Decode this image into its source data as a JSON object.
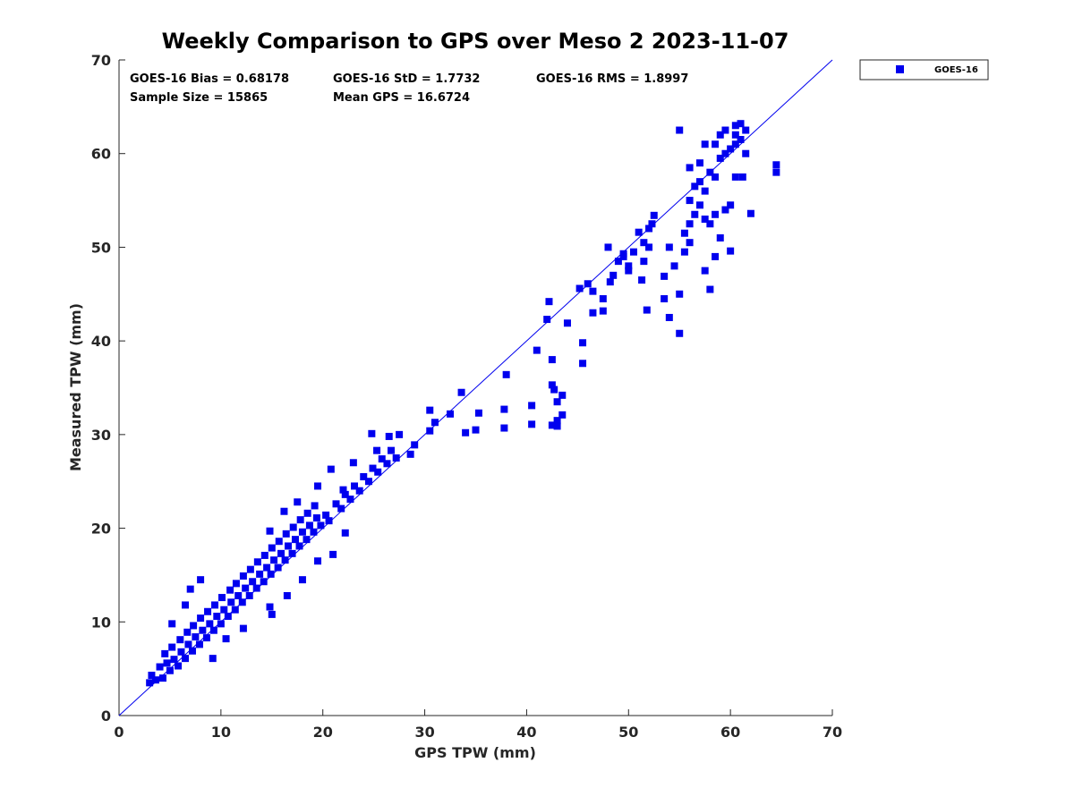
{
  "chart_data": {
    "type": "scatter",
    "title": "Weekly Comparison to GPS over Meso 2 2023-11-07",
    "xlabel": "GPS TPW (mm)",
    "ylabel": "Measured TPW (mm)",
    "xlim": [
      0,
      70
    ],
    "ylim": [
      0,
      70
    ],
    "xticks": [
      0,
      10,
      20,
      30,
      40,
      50,
      60,
      70
    ],
    "yticks": [
      0,
      10,
      20,
      30,
      40,
      50,
      60,
      70
    ],
    "grid": false,
    "legend_position": "outside-top-right",
    "colors": {
      "series": "#0000ee",
      "axis": "#262626",
      "reference_line": "#0000ee"
    },
    "stats": {
      "bias": "GOES-16 Bias = 0.68178",
      "std": "GOES-16 StD = 1.7732",
      "rms": "GOES-16 RMS = 1.8997",
      "sample": "Sample Size = 15865",
      "mean": "Mean GPS = 16.6724"
    },
    "reference_line": {
      "x": [
        0,
        70
      ],
      "y": [
        0,
        70
      ]
    },
    "series": [
      {
        "name": "GOES-16",
        "marker": "square",
        "points": [
          [
            3.0,
            3.5
          ],
          [
            3.2,
            4.3
          ],
          [
            3.6,
            3.8
          ],
          [
            4.0,
            5.2
          ],
          [
            4.3,
            4.0
          ],
          [
            4.7,
            5.6
          ],
          [
            5.0,
            4.8
          ],
          [
            4.5,
            6.6
          ],
          [
            5.4,
            6.0
          ],
          [
            5.8,
            5.3
          ],
          [
            5.2,
            7.3
          ],
          [
            6.1,
            6.8
          ],
          [
            6.5,
            6.1
          ],
          [
            6.0,
            8.1
          ],
          [
            6.8,
            7.6
          ],
          [
            7.2,
            6.9
          ],
          [
            6.7,
            8.9
          ],
          [
            7.5,
            8.4
          ],
          [
            7.9,
            7.6
          ],
          [
            7.3,
            9.6
          ],
          [
            8.2,
            9.1
          ],
          [
            8.6,
            8.3
          ],
          [
            8.0,
            10.4
          ],
          [
            8.9,
            9.8
          ],
          [
            9.3,
            9.1
          ],
          [
            8.7,
            11.1
          ],
          [
            9.6,
            10.6
          ],
          [
            10.0,
            9.8
          ],
          [
            9.4,
            11.8
          ],
          [
            10.3,
            11.3
          ],
          [
            10.7,
            10.6
          ],
          [
            10.1,
            12.6
          ],
          [
            11.0,
            12.1
          ],
          [
            11.4,
            11.3
          ],
          [
            10.9,
            13.4
          ],
          [
            11.7,
            12.8
          ],
          [
            12.1,
            12.1
          ],
          [
            11.5,
            14.1
          ],
          [
            12.4,
            13.6
          ],
          [
            12.8,
            12.8
          ],
          [
            12.2,
            14.9
          ],
          [
            13.1,
            14.3
          ],
          [
            13.5,
            13.6
          ],
          [
            12.9,
            15.6
          ],
          [
            13.8,
            15.1
          ],
          [
            14.2,
            14.3
          ],
          [
            13.6,
            16.4
          ],
          [
            14.5,
            15.8
          ],
          [
            14.9,
            15.1
          ],
          [
            14.3,
            17.1
          ],
          [
            15.2,
            16.6
          ],
          [
            15.6,
            15.8
          ],
          [
            15.0,
            17.9
          ],
          [
            15.9,
            17.3
          ],
          [
            16.3,
            16.6
          ],
          [
            15.7,
            18.6
          ],
          [
            16.6,
            18.1
          ],
          [
            17.0,
            17.3
          ],
          [
            16.4,
            19.4
          ],
          [
            17.3,
            18.8
          ],
          [
            17.7,
            18.1
          ],
          [
            17.1,
            20.1
          ],
          [
            18.0,
            19.6
          ],
          [
            18.4,
            18.8
          ],
          [
            17.8,
            20.9
          ],
          [
            18.7,
            20.3
          ],
          [
            19.1,
            19.6
          ],
          [
            18.5,
            21.6
          ],
          [
            19.4,
            21.1
          ],
          [
            19.8,
            20.3
          ],
          [
            19.2,
            22.4
          ],
          [
            20.3,
            21.4
          ],
          [
            20.6,
            20.8
          ],
          [
            21.3,
            22.6
          ],
          [
            21.8,
            22.1
          ],
          [
            22.2,
            23.6
          ],
          [
            22.7,
            23.1
          ],
          [
            23.1,
            24.5
          ],
          [
            23.6,
            24.0
          ],
          [
            24.0,
            25.5
          ],
          [
            24.5,
            25.0
          ],
          [
            24.9,
            26.4
          ],
          [
            25.4,
            26.0
          ],
          [
            25.8,
            27.4
          ],
          [
            26.3,
            26.9
          ],
          [
            26.7,
            28.3
          ],
          [
            27.2,
            27.5
          ],
          [
            7.0,
            13.5
          ],
          [
            8.0,
            14.5
          ],
          [
            6.5,
            11.8
          ],
          [
            5.2,
            9.8
          ],
          [
            9.2,
            6.1
          ],
          [
            10.5,
            8.2
          ],
          [
            12.2,
            9.3
          ],
          [
            14.8,
            11.6
          ],
          [
            15.0,
            10.8
          ],
          [
            16.5,
            12.8
          ],
          [
            18.0,
            14.5
          ],
          [
            19.5,
            16.5
          ],
          [
            21.0,
            17.2
          ],
          [
            22.2,
            19.5
          ],
          [
            14.8,
            19.7
          ],
          [
            16.2,
            21.8
          ],
          [
            17.5,
            22.8
          ],
          [
            19.5,
            24.5
          ],
          [
            20.8,
            26.3
          ],
          [
            22.0,
            24.1
          ],
          [
            23.0,
            27.0
          ],
          [
            24.8,
            30.1
          ],
          [
            25.3,
            28.3
          ],
          [
            26.5,
            29.8
          ],
          [
            27.5,
            30.0
          ],
          [
            28.6,
            27.9
          ],
          [
            29.0,
            28.9
          ],
          [
            30.5,
            30.4
          ],
          [
            30.5,
            32.6
          ],
          [
            31.0,
            31.3
          ],
          [
            33.6,
            34.5
          ],
          [
            32.5,
            32.2
          ],
          [
            34.0,
            30.2
          ],
          [
            35.3,
            32.3
          ],
          [
            35.0,
            30.5
          ],
          [
            37.8,
            32.7
          ],
          [
            37.8,
            30.7
          ],
          [
            40.5,
            33.1
          ],
          [
            40.5,
            31.1
          ],
          [
            43.0,
            31.5
          ],
          [
            43.5,
            32.1
          ],
          [
            42.5,
            35.3
          ],
          [
            42.7,
            34.8
          ],
          [
            43.0,
            33.5
          ],
          [
            42.5,
            31.0
          ],
          [
            43.5,
            34.2
          ],
          [
            43.0,
            30.9
          ],
          [
            38.0,
            36.4
          ],
          [
            41.0,
            39.0
          ],
          [
            42.2,
            44.2
          ],
          [
            42.0,
            42.3
          ],
          [
            42.5,
            38.0
          ],
          [
            44.0,
            41.9
          ],
          [
            45.5,
            39.8
          ],
          [
            45.5,
            37.6
          ],
          [
            45.2,
            45.6
          ],
          [
            46.0,
            46.1
          ],
          [
            46.5,
            45.3
          ],
          [
            47.5,
            43.2
          ],
          [
            46.5,
            43.0
          ],
          [
            47.5,
            44.5
          ],
          [
            48.2,
            46.3
          ],
          [
            48.5,
            47.0
          ],
          [
            49.0,
            48.5
          ],
          [
            49.5,
            49.0
          ],
          [
            50.0,
            48.0
          ],
          [
            50.5,
            49.5
          ],
          [
            51.0,
            51.6
          ],
          [
            51.3,
            46.5
          ],
          [
            51.5,
            48.5
          ],
          [
            52.0,
            50.0
          ],
          [
            52.3,
            52.5
          ],
          [
            52.5,
            53.4
          ],
          [
            51.8,
            43.3
          ],
          [
            53.5,
            44.5
          ],
          [
            54.0,
            42.5
          ],
          [
            55.0,
            45.0
          ],
          [
            55.0,
            40.8
          ],
          [
            53.5,
            46.9
          ],
          [
            54.5,
            48.0
          ],
          [
            54.0,
            50.0
          ],
          [
            55.5,
            49.5
          ],
          [
            56.0,
            50.5
          ],
          [
            55.5,
            51.5
          ],
          [
            56.0,
            52.5
          ],
          [
            56.5,
            53.5
          ],
          [
            57.0,
            54.5
          ],
          [
            57.5,
            53.0
          ],
          [
            58.0,
            52.5
          ],
          [
            58.5,
            53.5
          ],
          [
            58.5,
            49.0
          ],
          [
            57.5,
            47.5
          ],
          [
            58.0,
            45.5
          ],
          [
            60.0,
            49.6
          ],
          [
            59.0,
            51.0
          ],
          [
            59.5,
            54.0
          ],
          [
            60.0,
            54.5
          ],
          [
            56.0,
            55.0
          ],
          [
            56.5,
            56.5
          ],
          [
            57.0,
            57.0
          ],
          [
            57.5,
            56.0
          ],
          [
            56.0,
            58.5
          ],
          [
            57.0,
            59.0
          ],
          [
            58.0,
            58.0
          ],
          [
            58.5,
            57.5
          ],
          [
            59.0,
            59.5
          ],
          [
            59.5,
            60.0
          ],
          [
            60.0,
            60.5
          ],
          [
            58.5,
            61.0
          ],
          [
            59.0,
            62.0
          ],
          [
            59.5,
            62.5
          ],
          [
            60.5,
            62.0
          ],
          [
            61.0,
            61.5
          ],
          [
            61.5,
            62.5
          ],
          [
            60.5,
            63.0
          ],
          [
            61.0,
            63.2
          ],
          [
            61.5,
            60.0
          ],
          [
            60.5,
            57.5
          ],
          [
            61.2,
            57.5
          ],
          [
            62.0,
            53.6
          ],
          [
            64.5,
            58.0
          ],
          [
            64.5,
            58.8
          ],
          [
            60.5,
            61.0
          ],
          [
            55.0,
            62.5
          ],
          [
            57.5,
            61.0
          ],
          [
            49.5,
            49.3
          ],
          [
            50.0,
            47.5
          ],
          [
            48.0,
            50.0
          ],
          [
            51.5,
            50.5
          ],
          [
            52.0,
            52.0
          ]
        ]
      }
    ]
  }
}
